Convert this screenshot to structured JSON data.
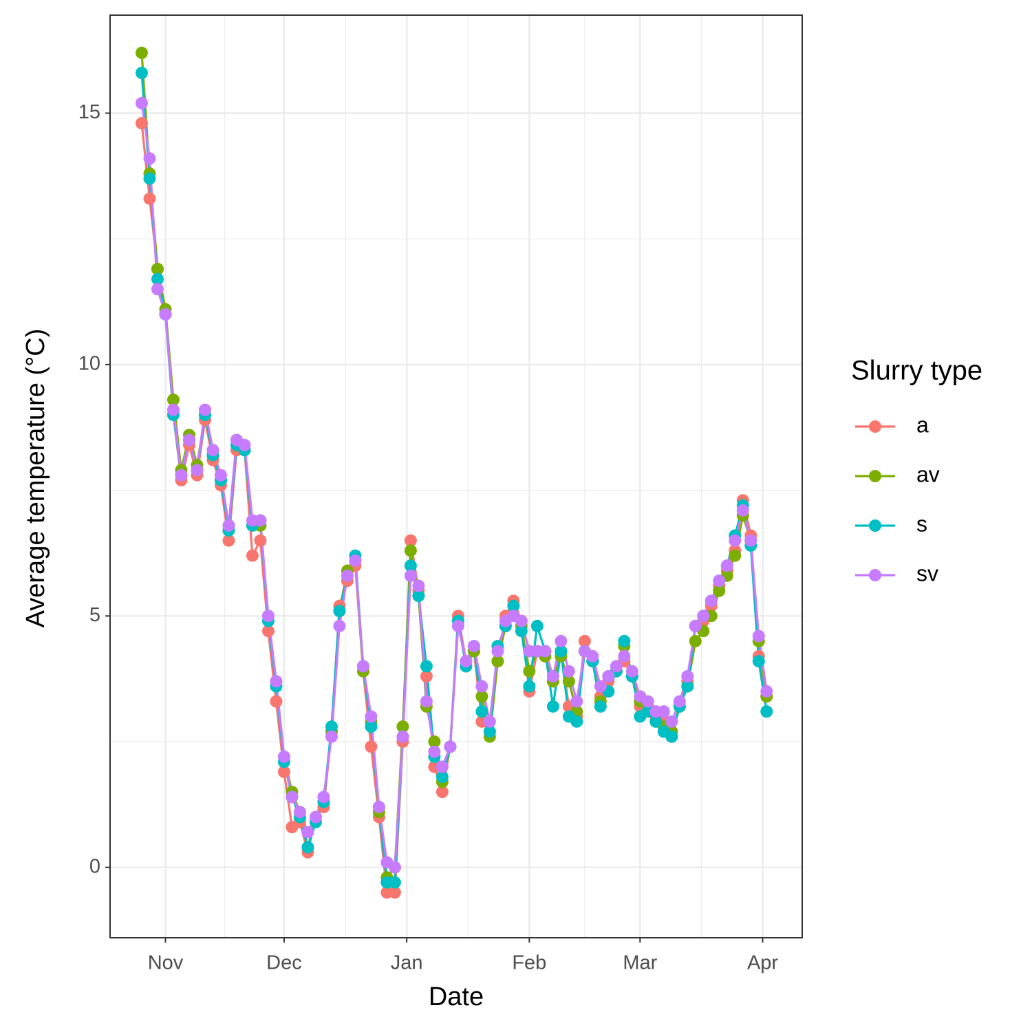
{
  "chart_data": {
    "type": "line",
    "x_label": "Date",
    "y_label": "Average temperature (°C)",
    "legend_title": "Slurry type",
    "legend": "right",
    "grid": true,
    "x": [
      "10-26",
      "10-28",
      "10-30",
      "11-01",
      "11-03",
      "11-05",
      "11-07",
      "11-09",
      "11-11",
      "11-13",
      "11-15",
      "11-17",
      "11-19",
      "11-21",
      "11-23",
      "11-25",
      "11-27",
      "11-29",
      "12-01",
      "12-03",
      "12-05",
      "12-07",
      "12-09",
      "12-11",
      "12-13",
      "12-15",
      "12-17",
      "12-19",
      "12-21",
      "12-23",
      "12-25",
      "12-27",
      "12-29",
      "12-31",
      "01-02",
      "01-04",
      "01-06",
      "01-08",
      "01-10",
      "01-12",
      "01-14",
      "01-16",
      "01-18",
      "01-20",
      "01-22",
      "01-24",
      "01-26",
      "01-28",
      "01-30",
      "02-01",
      "02-03",
      "02-05",
      "02-07",
      "02-09",
      "02-11",
      "02-13",
      "02-15",
      "02-17",
      "02-19",
      "02-21",
      "02-23",
      "02-25",
      "02-27",
      "03-01",
      "03-03",
      "03-05",
      "03-07",
      "03-09",
      "03-11",
      "03-13",
      "03-15",
      "03-17",
      "03-19",
      "03-21",
      "03-23",
      "03-25",
      "03-27",
      "03-29",
      "03-31",
      "04-02"
    ],
    "xlim": [
      "10-18",
      "04-11"
    ],
    "xticks": [
      {
        "value": "11-01",
        "label": "Nov"
      },
      {
        "value": "12-01",
        "label": "Dec"
      },
      {
        "value": "01-01",
        "label": "Jan"
      },
      {
        "value": "02-01",
        "label": "Feb"
      },
      {
        "value": "03-01",
        "label": "Mar"
      },
      {
        "value": "04-01",
        "label": "Apr"
      }
    ],
    "ylim": [
      -1.4,
      16.95
    ],
    "yticks": [
      0,
      5,
      10,
      15
    ],
    "series": [
      {
        "name": "a",
        "color": "#F8766D",
        "values": [
          14.8,
          13.3,
          11.9,
          11.0,
          9.0,
          7.7,
          8.4,
          7.8,
          8.9,
          8.1,
          7.6,
          6.5,
          8.3,
          8.3,
          6.2,
          6.5,
          4.7,
          3.3,
          1.9,
          0.8,
          0.9,
          0.3,
          1.0,
          1.2,
          2.7,
          5.2,
          5.7,
          6.0,
          3.9,
          2.4,
          1.0,
          -0.5,
          -0.5,
          2.5,
          6.5,
          5.5,
          3.8,
          2.0,
          1.5,
          2.4,
          5.0,
          4.1,
          4.3,
          2.9,
          2.7,
          4.1,
          5.0,
          5.3,
          4.9,
          3.5,
          4.3,
          4.2,
          3.7,
          4.3,
          3.2,
          3.0,
          4.5,
          4.1,
          3.4,
          3.7,
          3.9,
          4.1,
          3.8,
          3.2,
          3.2,
          3.0,
          2.9,
          2.6,
          3.2,
          3.7,
          4.8,
          4.9,
          5.2,
          5.6,
          5.9,
          6.3,
          7.3,
          6.6,
          4.2,
          3.4
        ]
      },
      {
        "name": "av",
        "color": "#7CAE00",
        "values": [
          16.2,
          13.8,
          11.9,
          11.1,
          9.3,
          7.9,
          8.6,
          8.0,
          9.0,
          8.2,
          7.7,
          6.8,
          8.5,
          8.3,
          6.8,
          6.8,
          5.0,
          3.7,
          2.2,
          1.5,
          1.1,
          0.4,
          1.0,
          1.3,
          2.7,
          5.1,
          5.9,
          6.1,
          3.9,
          2.9,
          1.1,
          -0.2,
          0.0,
          2.8,
          6.3,
          5.4,
          3.2,
          2.5,
          1.7,
          2.4,
          4.9,
          4.0,
          4.3,
          3.4,
          2.6,
          4.1,
          4.8,
          5.2,
          4.8,
          3.9,
          4.3,
          4.2,
          3.7,
          4.2,
          3.7,
          3.1,
          4.3,
          4.1,
          3.3,
          3.8,
          3.9,
          4.4,
          3.8,
          3.3,
          3.1,
          2.9,
          2.8,
          2.7,
          3.2,
          3.6,
          4.5,
          4.7,
          5.0,
          5.5,
          5.8,
          6.2,
          7.0,
          6.5,
          4.5,
          3.4
        ]
      },
      {
        "name": "s",
        "color": "#00BFC4",
        "values": [
          15.8,
          13.7,
          11.7,
          11.0,
          9.0,
          7.8,
          8.5,
          7.9,
          9.0,
          8.2,
          7.7,
          6.7,
          8.4,
          8.3,
          6.8,
          6.9,
          4.9,
          3.6,
          2.1,
          1.4,
          1.0,
          0.4,
          0.9,
          1.3,
          2.8,
          5.1,
          5.8,
          6.2,
          4.0,
          2.8,
          1.2,
          -0.3,
          -0.3,
          2.6,
          6.0,
          5.4,
          4.0,
          2.2,
          1.8,
          2.4,
          4.9,
          4.0,
          4.4,
          3.1,
          2.7,
          4.4,
          4.8,
          5.2,
          4.7,
          3.6,
          4.8,
          4.3,
          3.2,
          4.3,
          3.0,
          2.9,
          4.3,
          4.1,
          3.2,
          3.5,
          3.9,
          4.5,
          3.8,
          3.0,
          3.1,
          2.9,
          2.7,
          2.6,
          3.2,
          3.6,
          4.8,
          5.0,
          5.3,
          5.7,
          6.0,
          6.6,
          7.2,
          6.4,
          4.1,
          3.1
        ]
      },
      {
        "name": "sv",
        "color": "#C77CFF",
        "values": [
          15.2,
          14.1,
          11.5,
          11.0,
          9.1,
          7.8,
          8.5,
          7.9,
          9.1,
          8.3,
          7.8,
          6.8,
          8.5,
          8.4,
          6.9,
          6.9,
          5.0,
          3.7,
          2.2,
          1.4,
          1.1,
          0.7,
          1.0,
          1.4,
          2.6,
          4.8,
          5.8,
          6.1,
          4.0,
          3.0,
          1.2,
          0.1,
          0.0,
          2.6,
          5.8,
          5.6,
          3.3,
          2.3,
          2.0,
          2.4,
          4.8,
          4.1,
          4.4,
          3.6,
          2.9,
          4.3,
          4.9,
          5.0,
          4.9,
          4.3,
          4.3,
          4.3,
          3.8,
          4.5,
          3.9,
          3.3,
          4.3,
          4.2,
          3.6,
          3.8,
          4.0,
          4.2,
          3.9,
          3.4,
          3.3,
          3.1,
          3.1,
          2.9,
          3.3,
          3.8,
          4.8,
          5.0,
          5.3,
          5.7,
          6.0,
          6.5,
          7.1,
          6.5,
          4.6,
          3.5
        ]
      }
    ]
  }
}
